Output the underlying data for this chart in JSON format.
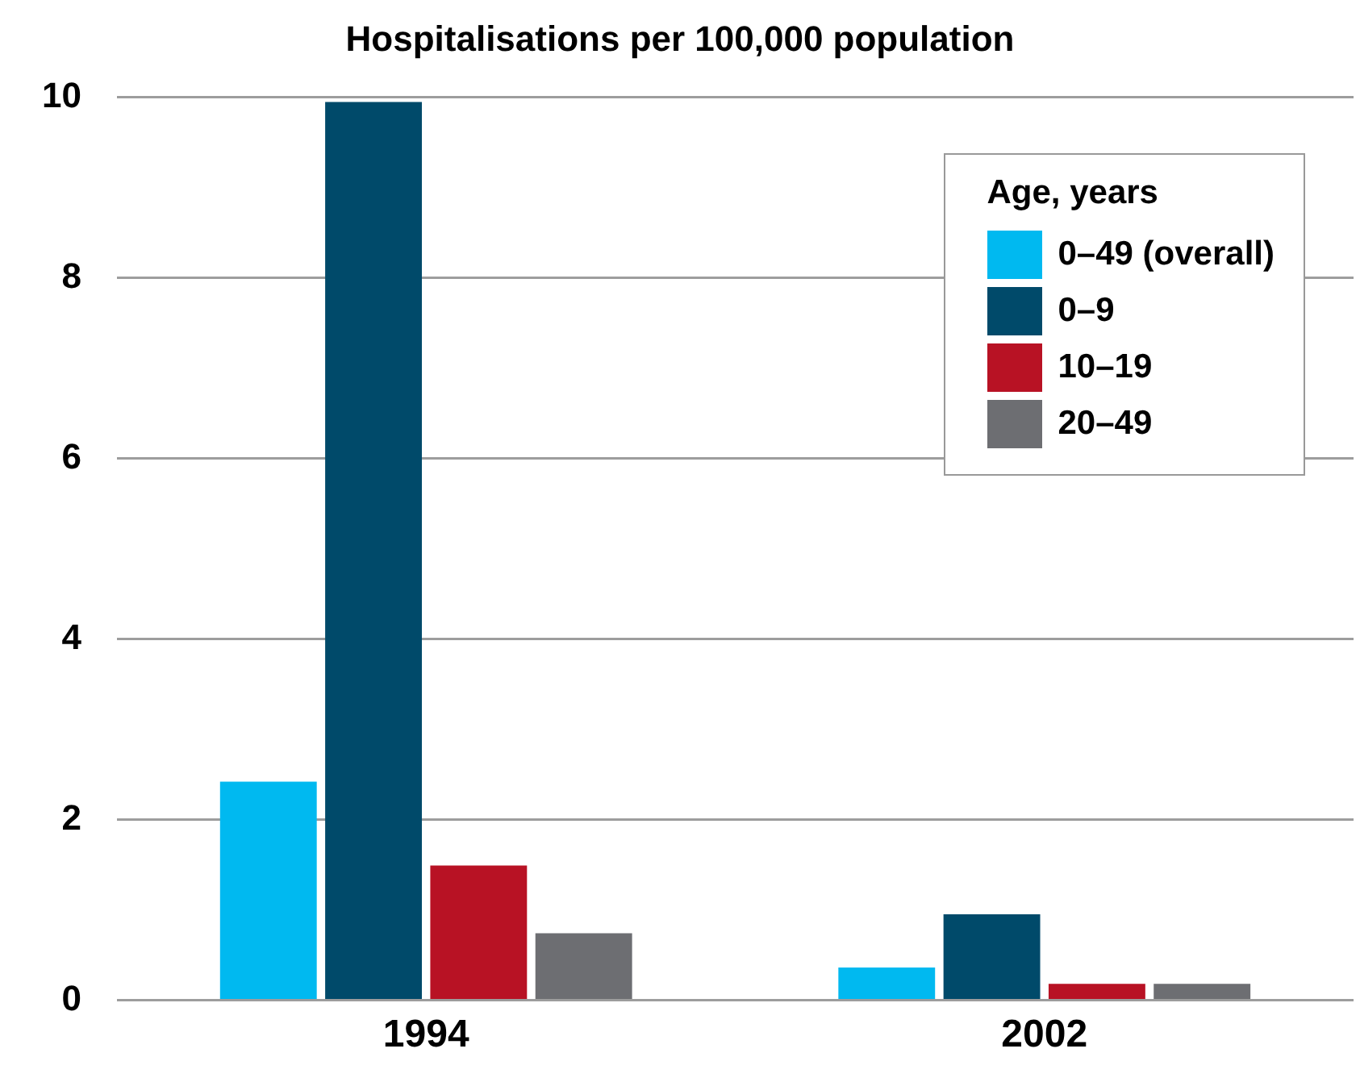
{
  "chart_data": {
    "type": "bar",
    "title": "Hospitalisations per 100,000 population",
    "legend_title": "Age, years",
    "categories": [
      "1994",
      "2002"
    ],
    "series": [
      {
        "name": "0–49 (overall)",
        "color": "#00b9f0",
        "values": [
          2.42,
          0.36
        ]
      },
      {
        "name": "0–9",
        "color": "#004a6a",
        "values": [
          9.95,
          0.95
        ]
      },
      {
        "name": "10–19",
        "color": "#b81224",
        "values": [
          1.49,
          0.18
        ]
      },
      {
        "name": "20–49",
        "color": "#6d6e72",
        "values": [
          0.74,
          0.18
        ]
      }
    ],
    "ylim": [
      0,
      10
    ],
    "yticks": [
      0,
      2,
      4,
      6,
      8,
      10
    ],
    "grid": "y",
    "legend": "top right"
  }
}
